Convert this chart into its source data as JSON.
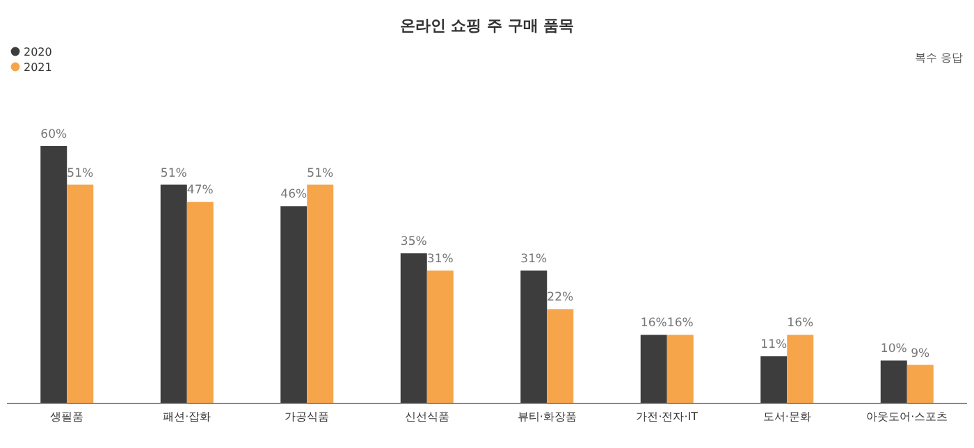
{
  "chart_data": {
    "type": "bar",
    "title": "온라인 쇼핑 주 구매 품목",
    "annotations": [
      "복수 응답"
    ],
    "categories": [
      "생필품",
      "패션·잡화",
      "가공식품",
      "신선식품",
      "뷰티·화장품",
      "가전·전자·IT",
      "도서·문화",
      "아웃도어·스포츠"
    ],
    "series": [
      {
        "name": "2020",
        "color": "#3d3d3d",
        "values": [
          60,
          51,
          46,
          35,
          31,
          16,
          11,
          10
        ],
        "value_labels": [
          "60%",
          "51%",
          "46%",
          "35%",
          "31%",
          "16%",
          "11%",
          "10%"
        ]
      },
      {
        "name": "2021",
        "color": "#f6a54b",
        "values": [
          51,
          47,
          51,
          31,
          22,
          16,
          16,
          9
        ],
        "value_labels": [
          "51%",
          "47%",
          "51%",
          "31%",
          "22%",
          "16%",
          "16%",
          "9%"
        ]
      }
    ],
    "legend": "top left",
    "grid": false
  }
}
